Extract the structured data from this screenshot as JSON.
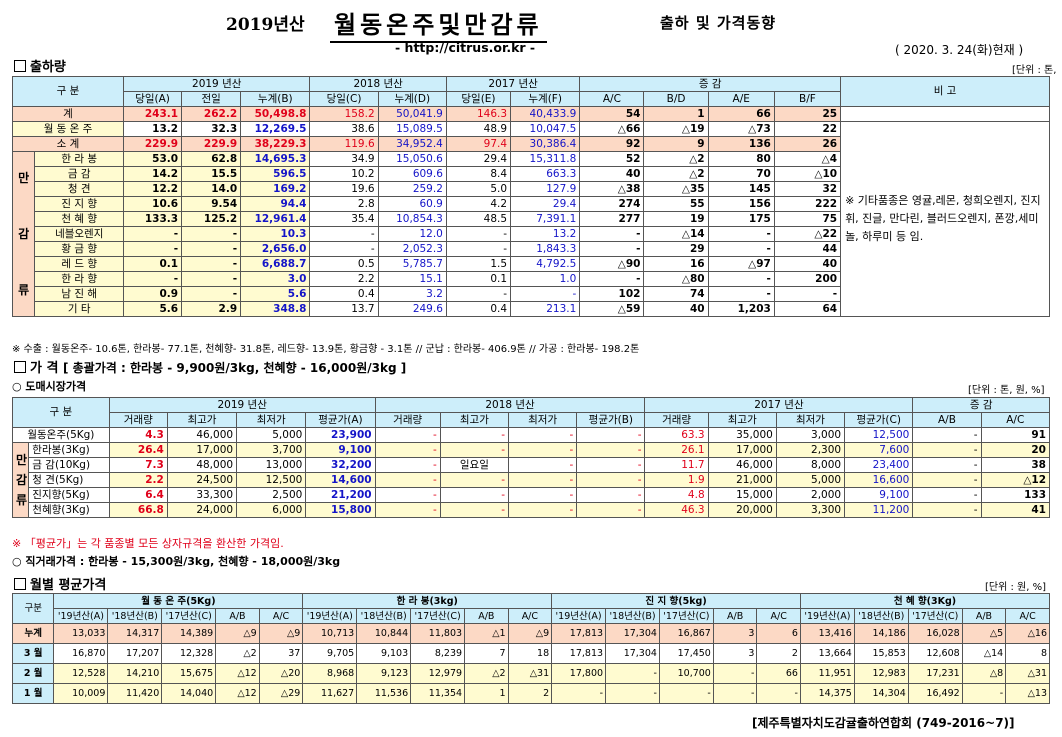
{
  "title": {
    "year": "2019년산",
    "main": "월동온주및만감류",
    "sub": "출하 및 가격동향"
  },
  "url": "- http://citrus.or.kr -",
  "date": "( 2020. 3. 24(화)현재 )",
  "sec1": {
    "title": "출하량",
    "unit": "[단위 : 톤, %]"
  },
  "ship": {
    "h_gubun": "구 분",
    "h_2019": "2019 년산",
    "h_2018": "2018 년산",
    "h_2017": "2017 년산",
    "h_jg": "증 감",
    "h_bigo": "비 고",
    "sub": [
      "당일(A)",
      "전일",
      "누계(B)",
      "당일(C)",
      "누계(D)",
      "당일(E)",
      "누계(F)",
      "A/C",
      "B/D",
      "A/E",
      "B/F"
    ],
    "side": "만\n\n감\n\n류",
    "rows": [
      {
        "name": "계",
        "v": [
          "243.1",
          "262.2",
          "50,498.8",
          "158.2",
          "50,041.9",
          "146.3",
          "40,433.9",
          "54",
          "1",
          "66",
          "25"
        ]
      },
      {
        "name": "월 동 온 주",
        "v": [
          "13.2",
          "32.3",
          "12,269.5",
          "38.6",
          "15,089.5",
          "48.9",
          "10,047.5",
          "△66",
          "△19",
          "△73",
          "22"
        ]
      },
      {
        "name": "소 계",
        "v": [
          "229.9",
          "229.9",
          "38,229.3",
          "119.6",
          "34,952.4",
          "97.4",
          "30,386.4",
          "92",
          "9",
          "136",
          "26"
        ]
      },
      {
        "name": "한 라 봉",
        "v": [
          "53.0",
          "62.8",
          "14,695.3",
          "34.9",
          "15,050.6",
          "29.4",
          "15,311.8",
          "52",
          "△2",
          "80",
          "△4"
        ]
      },
      {
        "name": "금 감",
        "v": [
          "14.2",
          "15.5",
          "596.5",
          "10.2",
          "609.6",
          "8.4",
          "663.3",
          "40",
          "△2",
          "70",
          "△10"
        ]
      },
      {
        "name": "청 견",
        "v": [
          "12.2",
          "14.0",
          "169.2",
          "19.6",
          "259.2",
          "5.0",
          "127.9",
          "△38",
          "△35",
          "145",
          "32"
        ]
      },
      {
        "name": "진 지 향",
        "v": [
          "10.6",
          "9.54",
          "94.4",
          "2.8",
          "60.9",
          "4.2",
          "29.4",
          "274",
          "55",
          "156",
          "222"
        ]
      },
      {
        "name": "천 혜 향",
        "v": [
          "133.3",
          "125.2",
          "12,961.4",
          "35.4",
          "10,854.3",
          "48.5",
          "7,391.1",
          "277",
          "19",
          "175",
          "75"
        ]
      },
      {
        "name": "네블오렌지",
        "v": [
          "-",
          "-",
          "10.3",
          "-",
          "12.0",
          "-",
          "13.2",
          "-",
          "△14",
          "-",
          "△22"
        ]
      },
      {
        "name": "황 금 향",
        "v": [
          "-",
          "-",
          "2,656.0",
          "-",
          "2,052.3",
          "-",
          "1,843.3",
          "-",
          "29",
          "-",
          "44"
        ]
      },
      {
        "name": "레 드 향",
        "v": [
          "0.1",
          "-",
          "6,688.7",
          "0.5",
          "5,785.7",
          "1.5",
          "4,792.5",
          "△90",
          "16",
          "△97",
          "40"
        ]
      },
      {
        "name": "한 라 향",
        "v": [
          "-",
          "-",
          "3.0",
          "2.2",
          "15.1",
          "0.1",
          "1.0",
          "-",
          "△80",
          "-",
          "200"
        ]
      },
      {
        "name": "남 진 해",
        "v": [
          "0.9",
          "-",
          "5.6",
          "0.4",
          "3.2",
          "-",
          "-",
          "102",
          "74",
          "-",
          "-"
        ]
      },
      {
        "name": "기 타",
        "v": [
          "5.6",
          "2.9",
          "348.8",
          "13.7",
          "249.6",
          "0.4",
          "213.1",
          "△59",
          "40",
          "1,203",
          "64"
        ]
      }
    ],
    "bigo": "※ 기타품종은 영귤,레몬, 청희오렌지, 진지휘, 진글, 만다린, 블러드오렌지, 폰깡,세미놀, 하루미 등 임."
  },
  "note1": "※ 수출 : 월동온주- 10.6톤, 한라봉- 77.1톤, 천혜향- 31.8톤, 레드향- 13.9톤, 황금향 - 3.1톤 // 군납 : 한라봉- 406.9톤 // 가공 : 한라봉- 198.2톤",
  "sec2": {
    "title": "가 격",
    "summary": "[ 총괄가격 : 한라봉 - 9,900원/3kg, 천혜향 - 16,000원/3kg ]"
  },
  "sec2a": {
    "title": "○ 도매시장가격",
    "unit": "[단위 : 톤, 원, %]"
  },
  "whole": {
    "h_gubun": "구 분",
    "h_2019": "2019 년산",
    "h_2018": "2018 년산",
    "h_2017": "2017 년산",
    "h_jg": "증 감",
    "sub": [
      "거래량",
      "최고가",
      "최저가",
      "평균가(A)",
      "거래량",
      "최고가",
      "최저가",
      "평균가(B)",
      "거래량",
      "최고가",
      "최저가",
      "평균가(C)",
      "A/B",
      "A/C"
    ],
    "side": "만\n감\n류",
    "rows": [
      {
        "name": "월동온주(5Kg)",
        "v": [
          "4.3",
          "46,000",
          "5,000",
          "23,900",
          "-",
          "-",
          "-",
          "-",
          "63.3",
          "35,000",
          "3,000",
          "12,500",
          "-",
          "91"
        ]
      },
      {
        "name": "한라봉(3Kg)",
        "v": [
          "26.4",
          "17,000",
          "3,700",
          "9,100",
          "-",
          "-",
          "-",
          "-",
          "26.1",
          "17,000",
          "2,300",
          "7,600",
          "-",
          "20"
        ]
      },
      {
        "name": "금 감(10Kg)",
        "v": [
          "7.3",
          "48,000",
          "13,000",
          "32,200",
          "-",
          "일요일",
          "-",
          "-",
          "11.7",
          "46,000",
          "8,000",
          "23,400",
          "-",
          "38"
        ]
      },
      {
        "name": "청 견(5Kg)",
        "v": [
          "2.2",
          "24,500",
          "12,500",
          "14,600",
          "-",
          "-",
          "-",
          "-",
          "1.9",
          "21,000",
          "5,000",
          "16,600",
          "-",
          "△12"
        ]
      },
      {
        "name": "진지향(5Kg)",
        "v": [
          "6.4",
          "33,300",
          "2,500",
          "21,200",
          "-",
          "-",
          "-",
          "-",
          "4.8",
          "15,000",
          "2,000",
          "9,100",
          "-",
          "133"
        ]
      },
      {
        "name": "천혜향(3Kg)",
        "v": [
          "66.8",
          "24,000",
          "6,000",
          "15,800",
          "-",
          "-",
          "-",
          "-",
          "46.3",
          "20,000",
          "3,300",
          "11,200",
          "-",
          "41"
        ]
      }
    ]
  },
  "note2": "※ 「평균가」는 각 품종별 모든 상자규격을 환산한 가격임.",
  "note3": "○ 직거래가격 : 한라봉 - 15,300원/3kg, 천혜향 - 18,000원/3kg",
  "sec3": {
    "title": "월별 평균가격",
    "unit": "[단위 : 원, %]"
  },
  "monthly": {
    "h_gubun": "구분",
    "groups": [
      "월 동 온 주(5Kg)",
      "한 라 봉(3kg)",
      "진 지 향(5kg)",
      "천 혜 향(3Kg)"
    ],
    "sub": [
      "'19년산(A)",
      "'18년산(B)",
      "'17년산(C)",
      "A/B",
      "A/C"
    ],
    "rows": [
      {
        "name": "누계",
        "v": [
          "13,033",
          "14,317",
          "14,389",
          "△9",
          "△9",
          "10,713",
          "10,844",
          "11,803",
          "△1",
          "△9",
          "17,813",
          "17,304",
          "16,867",
          "3",
          "6",
          "13,416",
          "14,186",
          "16,028",
          "△5",
          "△16"
        ]
      },
      {
        "name": "3 월",
        "v": [
          "16,870",
          "17,207",
          "12,328",
          "△2",
          "37",
          "9,705",
          "9,103",
          "8,239",
          "7",
          "18",
          "17,813",
          "17,304",
          "17,450",
          "3",
          "2",
          "13,664",
          "15,853",
          "12,608",
          "△14",
          "8"
        ]
      },
      {
        "name": "2 월",
        "v": [
          "12,528",
          "14,210",
          "15,675",
          "△12",
          "△20",
          "8,968",
          "9,123",
          "12,979",
          "△2",
          "△31",
          "17,800",
          "-",
          "10,700",
          "-",
          "66",
          "11,951",
          "12,983",
          "17,231",
          "△8",
          "△31"
        ]
      },
      {
        "name": "1 월",
        "v": [
          "10,009",
          "11,420",
          "14,040",
          "△12",
          "△29",
          "11,627",
          "11,536",
          "11,354",
          "1",
          "2",
          "-",
          "-",
          "-",
          "-",
          "-",
          "14,375",
          "14,304",
          "16,492",
          "-",
          "△13"
        ]
      }
    ]
  },
  "footer": "[제주특별자치도감귤출하연합회 (749-2016~7)]"
}
